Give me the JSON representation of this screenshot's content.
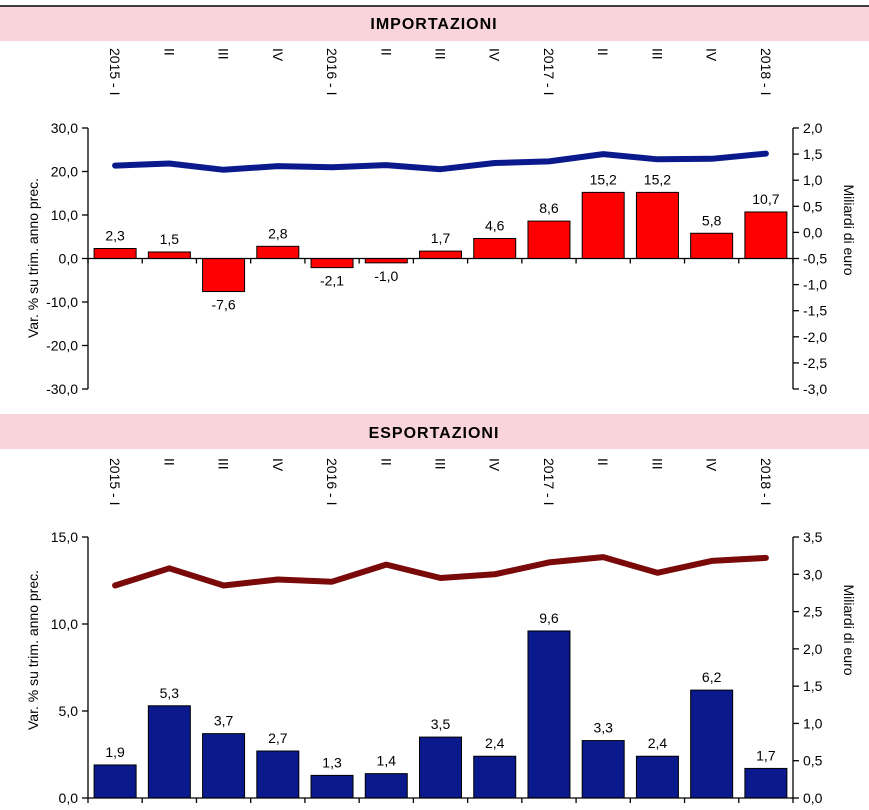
{
  "colors": {
    "panel_bg": "#f9d4da",
    "imp_bar": "#ff0000",
    "imp_line": "#0a1a8c",
    "exp_bar": "#0a1a8c",
    "exp_line": "#7a0a0a",
    "plot_bg": "#ffffff"
  },
  "chart_data": [
    {
      "type": "bar",
      "title": "IMPORTAZIONI",
      "categories": [
        "2015 - I",
        "II",
        "III",
        "IV",
        "2016 - I",
        "II",
        "III",
        "IV",
        "2017 - I",
        "II",
        "III",
        "IV",
        "2018 - I"
      ],
      "ylabel": "Var. % su trim. anno prec.",
      "y2label": "Miliardi di euro",
      "ylim": [
        -30,
        30
      ],
      "y2lim": [
        -3,
        2
      ],
      "yticks": [
        "30,0",
        "20,0",
        "10,0",
        "0,0",
        "-10,0",
        "-20,0",
        "-30,0"
      ],
      "y2ticks": [
        "2,0",
        "1,5",
        "1,0",
        "0,5",
        "0,0",
        "-0,5",
        "-1,0",
        "-1,5",
        "-2,0",
        "-2,5",
        "-3,0"
      ],
      "values": [
        2.3,
        1.5,
        -7.6,
        2.8,
        -2.1,
        -1.0,
        1.7,
        4.6,
        8.6,
        15.2,
        15.2,
        5.8,
        10.7
      ],
      "value_labels": [
        "2,3",
        "1,5",
        "-7,6",
        "2,8",
        "-2,1",
        "-1,0",
        "1,7",
        "4,6",
        "8,6",
        "15,2",
        "15,2",
        "5,8",
        "10,7"
      ],
      "line_values": [
        1.28,
        1.32,
        1.2,
        1.27,
        1.25,
        1.29,
        1.21,
        1.33,
        1.36,
        1.5,
        1.4,
        1.41,
        1.51
      ]
    },
    {
      "type": "bar",
      "title": "ESPORTAZIONI",
      "categories": [
        "2015 - I",
        "II",
        "III",
        "IV",
        "2016 - I",
        "II",
        "III",
        "IV",
        "2017 - I",
        "II",
        "III",
        "IV",
        "2018 - I"
      ],
      "ylabel": "Var. % su trim. anno prec.",
      "y2label": "Miliardi di euro",
      "ylim": [
        0,
        15
      ],
      "y2lim": [
        0,
        3.5
      ],
      "yticks": [
        "15,0",
        "10,0",
        "5,0",
        "0,0"
      ],
      "y2ticks": [
        "3,5",
        "3,0",
        "2,5",
        "2,0",
        "1,5",
        "1,0",
        "0,5",
        "0,0"
      ],
      "values": [
        1.9,
        5.3,
        3.7,
        2.7,
        1.3,
        1.4,
        3.5,
        2.4,
        9.6,
        3.3,
        2.4,
        6.2,
        1.7
      ],
      "value_labels": [
        "1,9",
        "5,3",
        "3,7",
        "2,7",
        "1,3",
        "1,4",
        "3,5",
        "2,4",
        "9,6",
        "3,3",
        "2,4",
        "6,2",
        "1,7"
      ],
      "line_values": [
        2.85,
        3.08,
        2.85,
        2.93,
        2.9,
        3.13,
        2.95,
        3.0,
        3.16,
        3.23,
        3.02,
        3.18,
        3.22
      ]
    }
  ]
}
